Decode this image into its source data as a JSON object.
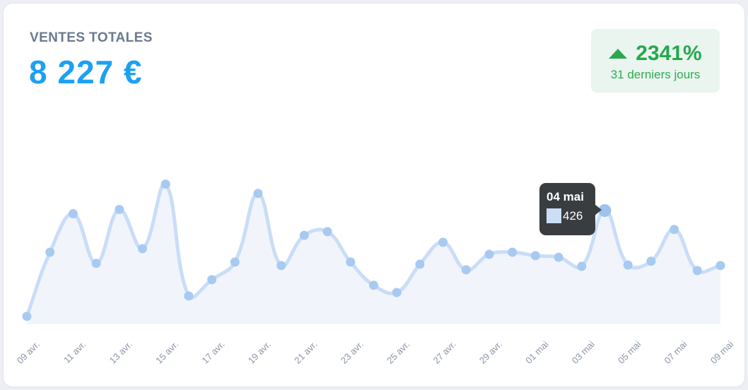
{
  "header": {
    "title": "VENTES TOTALES",
    "amount": "8 227 €",
    "badge": {
      "direction": "up",
      "percent": "2341%",
      "period": "31 derniers jours"
    }
  },
  "colors": {
    "accent_blue": "#1da0f2",
    "title_gray": "#6a7990",
    "green_text": "#27a74e",
    "green_bg": "#e9f5ee",
    "line": "#c9ddf7",
    "point": "#a8caf1",
    "highlight_point": "#9cc3ee",
    "area_fill": "#f1f5fb",
    "axis_label": "#8b95a7",
    "tooltip_bg": "#3a3d40",
    "tooltip_swatch": "#cbdef5"
  },
  "chart_data": {
    "type": "line",
    "title": "Ventes totales par jour (31 derniers jours)",
    "xlabel": "",
    "ylabel": "",
    "grid": false,
    "legend_position": "none",
    "ylim": [
      0,
      560
    ],
    "x": [
      "09 avr.",
      "10 avr.",
      "11 avr.",
      "12 avr.",
      "13 avr.",
      "14 avr.",
      "15 avr.",
      "16 avr.",
      "17 avr.",
      "18 avr.",
      "19 avr.",
      "20 avr.",
      "21 avr.",
      "22 avr.",
      "23 avr.",
      "24 avr.",
      "25 avr.",
      "26 avr.",
      "27 avr.",
      "28 avr.",
      "29 avr.",
      "30 avr.",
      "01 mai",
      "02 mai",
      "03 mai",
      "04 mai",
      "05 mai",
      "06 mai",
      "07 mai",
      "08 mai",
      "09 mai"
    ],
    "values": [
      30,
      270,
      414,
      228,
      430,
      283,
      525,
      106,
      167,
      233,
      490,
      220,
      333,
      347,
      233,
      146,
      119,
      225,
      307,
      204,
      262,
      270,
      257,
      251,
      217,
      426,
      222,
      236,
      355,
      201,
      220
    ],
    "x_tick_labels": [
      "09 avr.",
      "11 avr.",
      "13 avr.",
      "15 avr.",
      "17 avr.",
      "19 avr.",
      "21 avr.",
      "23 avr.",
      "25 avr.",
      "27 avr.",
      "29 avr.",
      "01 mai",
      "03 mai",
      "05 mai",
      "07 mai",
      "09 mai"
    ],
    "highlighted_index": 25,
    "tooltip": {
      "date": "04 mai",
      "value": "426"
    }
  }
}
